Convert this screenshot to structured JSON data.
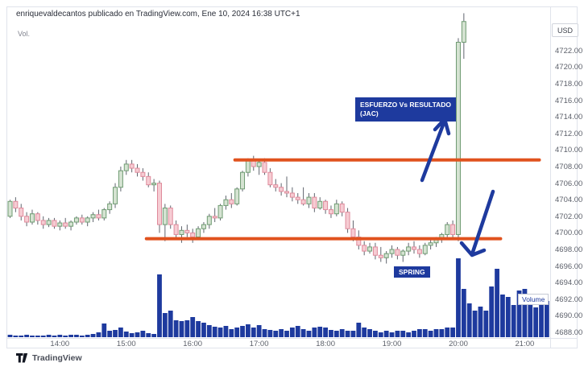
{
  "header": {
    "attribution": "enriquevaldecantos publicado en TradingView.com, Ene 10, 2024 16:38 UTC+1"
  },
  "pane": {
    "vol_label": "Vol.",
    "currency": "USD",
    "volume_badge": "Volume"
  },
  "annotations": {
    "effort_line1": "ESFUERZO Vs RESULTADO",
    "effort_line2": "(JAC)",
    "spring": "SPRING",
    "arrows": [
      {
        "name": "effort-arrow",
        "direction": "up"
      },
      {
        "name": "result-arrow",
        "direction": "down"
      }
    ]
  },
  "footer": {
    "brand": "TradingView",
    "logo_icon": "tradingview-logo"
  },
  "colors": {
    "up_fill": "#d5e3d2",
    "up_border": "#6f9b72",
    "down_fill": "#f6ccd3",
    "down_border": "#df8a9b",
    "wick": "#60656e",
    "volume": "#1e3a9e",
    "annotation_bg": "#1e3a9e",
    "accent_blue": "#1e3a9e",
    "line_orange": "#e0521e",
    "axis_text": "#5d616b",
    "border": "#e0e3eb"
  },
  "axes": {
    "price_ticks": [
      "4722.00",
      "4720.00",
      "4718.00",
      "4716.00",
      "4714.00",
      "4712.00",
      "4710.00",
      "4708.00",
      "4706.00",
      "4704.00",
      "4702.00",
      "4700.00",
      "4698.00",
      "4696.00",
      "4694.00",
      "4692.00",
      "4690.00",
      "4688.00"
    ],
    "time_ticks": [
      "14:00",
      "15:00",
      "16:00",
      "17:00",
      "18:00",
      "19:00",
      "20:00",
      "21:00"
    ]
  },
  "chart_data": {
    "type": "candlestick",
    "interval": "5m",
    "currency": "USD",
    "price_axis": {
      "min": 4688,
      "max": 4722,
      "tick_step": 2
    },
    "time_axis": {
      "start": "13:15",
      "end_volume": "21:20",
      "ticks": [
        "14:00",
        "15:00",
        "16:00",
        "17:00",
        "18:00",
        "19:00",
        "20:00",
        "21:00"
      ]
    },
    "levels": [
      {
        "label": "resistance",
        "price": 4708.8,
        "from": "16:40",
        "to": "21:15"
      },
      {
        "label": "support",
        "price": 4699.3,
        "from": "15:20",
        "to": "20:40"
      }
    ],
    "candles_format": [
      "time",
      "open",
      "high",
      "low",
      "close"
    ],
    "candles": [
      [
        "13:15",
        4702.0,
        4704.0,
        4701.8,
        4703.8
      ],
      [
        "13:20",
        4703.8,
        4704.3,
        4702.5,
        4703.0
      ],
      [
        "13:25",
        4703.0,
        4703.5,
        4701.5,
        4702.0
      ],
      [
        "13:30",
        4702.0,
        4702.5,
        4700.8,
        4701.3
      ],
      [
        "13:35",
        4701.3,
        4702.8,
        4701.0,
        4702.3
      ],
      [
        "13:40",
        4702.3,
        4702.5,
        4701.0,
        4701.5
      ],
      [
        "13:45",
        4701.5,
        4702.0,
        4700.5,
        4701.0
      ],
      [
        "13:50",
        4701.0,
        4701.8,
        4700.7,
        4701.5
      ],
      [
        "13:55",
        4701.5,
        4701.8,
        4700.5,
        4700.8
      ],
      [
        "14:00",
        4700.8,
        4701.5,
        4700.3,
        4701.2
      ],
      [
        "14:05",
        4701.2,
        4701.8,
        4700.5,
        4700.8
      ],
      [
        "14:10",
        4700.8,
        4701.5,
        4700.3,
        4701.3
      ],
      [
        "14:15",
        4701.3,
        4702.0,
        4701.0,
        4701.8
      ],
      [
        "14:20",
        4701.8,
        4702.2,
        4701.0,
        4701.3
      ],
      [
        "14:25",
        4701.3,
        4702.0,
        4700.8,
        4701.8
      ],
      [
        "14:30",
        4701.8,
        4702.5,
        4701.3,
        4702.2
      ],
      [
        "14:35",
        4702.2,
        4702.8,
        4701.5,
        4701.8
      ],
      [
        "14:40",
        4701.8,
        4703.0,
        4701.5,
        4702.8
      ],
      [
        "14:45",
        4702.8,
        4703.8,
        4702.3,
        4703.5
      ],
      [
        "14:50",
        4703.5,
        4706.0,
        4703.0,
        4705.5
      ],
      [
        "14:55",
        4705.5,
        4708.0,
        4705.0,
        4707.5
      ],
      [
        "15:00",
        4707.5,
        4708.8,
        4707.0,
        4708.3
      ],
      [
        "15:05",
        4708.3,
        4708.8,
        4707.3,
        4707.8
      ],
      [
        "15:10",
        4707.8,
        4708.3,
        4706.8,
        4707.3
      ],
      [
        "15:15",
        4707.3,
        4707.8,
        4706.3,
        4706.8
      ],
      [
        "15:20",
        4706.8,
        4707.3,
        4705.5,
        4705.8
      ],
      [
        "15:25",
        4705.8,
        4706.5,
        4705.0,
        4706.0
      ],
      [
        "15:30",
        4706.0,
        4706.3,
        4700.0,
        4701.0
      ],
      [
        "15:35",
        4701.0,
        4703.5,
        4699.0,
        4703.0
      ],
      [
        "15:40",
        4703.0,
        4703.3,
        4700.5,
        4701.0
      ],
      [
        "15:45",
        4701.0,
        4701.5,
        4699.3,
        4699.8
      ],
      [
        "15:50",
        4699.8,
        4700.8,
        4698.8,
        4700.3
      ],
      [
        "15:55",
        4700.3,
        4701.0,
        4699.5,
        4700.0
      ],
      [
        "16:00",
        4700.0,
        4700.5,
        4698.8,
        4699.5
      ],
      [
        "16:05",
        4699.5,
        4700.8,
        4699.3,
        4700.5
      ],
      [
        "16:10",
        4700.5,
        4701.3,
        4700.0,
        4701.0
      ],
      [
        "16:15",
        4701.0,
        4702.3,
        4700.5,
        4702.0
      ],
      [
        "16:20",
        4702.0,
        4703.0,
        4701.3,
        4701.8
      ],
      [
        "16:25",
        4701.8,
        4703.5,
        4701.5,
        4703.3
      ],
      [
        "16:30",
        4703.3,
        4704.5,
        4702.8,
        4704.0
      ],
      [
        "16:35",
        4704.0,
        4704.8,
        4703.0,
        4703.5
      ],
      [
        "16:40",
        4703.5,
        4705.5,
        4703.3,
        4705.3
      ],
      [
        "16:45",
        4705.3,
        4707.5,
        4705.0,
        4707.3
      ],
      [
        "16:50",
        4707.3,
        4709.0,
        4706.8,
        4708.8
      ],
      [
        "16:55",
        4708.8,
        4709.3,
        4707.5,
        4708.0
      ],
      [
        "17:00",
        4708.0,
        4708.8,
        4707.0,
        4708.5
      ],
      [
        "17:05",
        4708.5,
        4709.0,
        4707.0,
        4707.3
      ],
      [
        "17:10",
        4707.3,
        4707.8,
        4705.5,
        4705.8
      ],
      [
        "17:15",
        4705.8,
        4706.5,
        4705.0,
        4705.5
      ],
      [
        "17:20",
        4705.5,
        4706.0,
        4704.5,
        4705.0
      ],
      [
        "17:25",
        4705.0,
        4706.8,
        4704.3,
        4704.8
      ],
      [
        "17:30",
        4704.8,
        4705.5,
        4703.8,
        4704.3
      ],
      [
        "17:35",
        4704.3,
        4704.8,
        4703.5,
        4704.0
      ],
      [
        "17:40",
        4704.0,
        4705.5,
        4703.3,
        4703.5
      ],
      [
        "17:45",
        4703.5,
        4704.8,
        4703.0,
        4704.3
      ],
      [
        "17:50",
        4704.3,
        4704.8,
        4702.5,
        4703.0
      ],
      [
        "17:55",
        4703.0,
        4704.3,
        4702.8,
        4703.8
      ],
      [
        "18:00",
        4703.8,
        4704.0,
        4702.3,
        4702.8
      ],
      [
        "18:05",
        4702.8,
        4703.3,
        4701.8,
        4702.3
      ],
      [
        "18:10",
        4702.3,
        4704.0,
        4702.0,
        4703.5
      ],
      [
        "18:15",
        4703.5,
        4703.8,
        4702.0,
        4702.5
      ],
      [
        "18:20",
        4702.5,
        4703.0,
        4700.0,
        4700.5
      ],
      [
        "18:25",
        4700.5,
        4701.5,
        4699.0,
        4699.5
      ],
      [
        "18:30",
        4699.5,
        4700.3,
        4698.0,
        4698.5
      ],
      [
        "18:35",
        4698.5,
        4699.0,
        4697.3,
        4697.8
      ],
      [
        "18:40",
        4697.8,
        4698.8,
        4697.5,
        4698.3
      ],
      [
        "18:45",
        4698.3,
        4698.8,
        4696.8,
        4697.3
      ],
      [
        "18:50",
        4697.3,
        4698.3,
        4696.5,
        4697.0
      ],
      [
        "18:55",
        4697.0,
        4697.8,
        4696.3,
        4697.5
      ],
      [
        "19:00",
        4697.5,
        4698.5,
        4697.0,
        4698.0
      ],
      [
        "19:05",
        4698.0,
        4698.3,
        4696.8,
        4697.3
      ],
      [
        "19:10",
        4697.3,
        4698.0,
        4696.5,
        4697.8
      ],
      [
        "19:15",
        4697.8,
        4698.8,
        4697.3,
        4698.3
      ],
      [
        "19:20",
        4698.3,
        4699.0,
        4697.5,
        4698.0
      ],
      [
        "19:25",
        4698.0,
        4698.5,
        4697.0,
        4697.5
      ],
      [
        "19:30",
        4697.5,
        4698.8,
        4697.3,
        4698.5
      ],
      [
        "19:35",
        4698.5,
        4699.3,
        4698.0,
        4698.8
      ],
      [
        "19:40",
        4698.8,
        4699.5,
        4698.3,
        4699.3
      ],
      [
        "19:45",
        4699.3,
        4700.0,
        4698.8,
        4699.8
      ],
      [
        "19:50",
        4699.8,
        4701.3,
        4699.5,
        4701.0
      ],
      [
        "19:55",
        4701.0,
        4701.5,
        4699.3,
        4699.8
      ],
      [
        "20:00",
        4699.8,
        4723.5,
        4699.0,
        4723.0
      ],
      [
        "20:05",
        4723.0,
        4726.5,
        4721.0,
        4725.5
      ]
    ],
    "volume_unit": "relative height (no volume scale shown)",
    "volume": [
      [
        "13:15",
        3
      ],
      [
        "13:20",
        2
      ],
      [
        "13:25",
        2
      ],
      [
        "13:30",
        3
      ],
      [
        "13:35",
        2
      ],
      [
        "13:40",
        2
      ],
      [
        "13:45",
        2
      ],
      [
        "13:50",
        3
      ],
      [
        "13:55",
        2
      ],
      [
        "14:00",
        3
      ],
      [
        "14:05",
        2
      ],
      [
        "14:10",
        3
      ],
      [
        "14:15",
        3
      ],
      [
        "14:20",
        2
      ],
      [
        "14:25",
        3
      ],
      [
        "14:30",
        4
      ],
      [
        "14:35",
        6
      ],
      [
        "14:40",
        17
      ],
      [
        "14:45",
        8
      ],
      [
        "14:50",
        9
      ],
      [
        "14:55",
        12
      ],
      [
        "15:00",
        7
      ],
      [
        "15:05",
        5
      ],
      [
        "15:10",
        6
      ],
      [
        "15:15",
        8
      ],
      [
        "15:20",
        5
      ],
      [
        "15:25",
        4
      ],
      [
        "15:30",
        78
      ],
      [
        "15:35",
        30
      ],
      [
        "15:40",
        33
      ],
      [
        "15:45",
        21
      ],
      [
        "15:50",
        20
      ],
      [
        "15:55",
        21
      ],
      [
        "16:00",
        25
      ],
      [
        "16:05",
        20
      ],
      [
        "16:10",
        18
      ],
      [
        "16:15",
        15
      ],
      [
        "16:20",
        13
      ],
      [
        "16:25",
        12
      ],
      [
        "16:30",
        14
      ],
      [
        "16:35",
        10
      ],
      [
        "16:40",
        12
      ],
      [
        "16:45",
        14
      ],
      [
        "16:50",
        16
      ],
      [
        "16:55",
        12
      ],
      [
        "17:00",
        15
      ],
      [
        "17:05",
        10
      ],
      [
        "17:10",
        9
      ],
      [
        "17:15",
        8
      ],
      [
        "17:20",
        10
      ],
      [
        "17:25",
        8
      ],
      [
        "17:30",
        12
      ],
      [
        "17:35",
        14
      ],
      [
        "17:40",
        10
      ],
      [
        "17:45",
        8
      ],
      [
        "17:50",
        12
      ],
      [
        "17:55",
        13
      ],
      [
        "18:00",
        12
      ],
      [
        "18:05",
        9
      ],
      [
        "18:10",
        8
      ],
      [
        "18:15",
        10
      ],
      [
        "18:20",
        8
      ],
      [
        "18:25",
        8
      ],
      [
        "18:30",
        18
      ],
      [
        "18:35",
        12
      ],
      [
        "18:40",
        10
      ],
      [
        "18:45",
        8
      ],
      [
        "18:50",
        6
      ],
      [
        "18:55",
        8
      ],
      [
        "19:00",
        6
      ],
      [
        "19:05",
        8
      ],
      [
        "19:10",
        8
      ],
      [
        "19:15",
        6
      ],
      [
        "19:20",
        8
      ],
      [
        "19:25",
        10
      ],
      [
        "19:30",
        10
      ],
      [
        "19:35",
        8
      ],
      [
        "19:40",
        10
      ],
      [
        "19:45",
        10
      ],
      [
        "19:50",
        12
      ],
      [
        "19:55",
        12
      ],
      [
        "20:00",
        98
      ],
      [
        "20:05",
        60
      ],
      [
        "20:10",
        42
      ],
      [
        "20:15",
        33
      ],
      [
        "20:20",
        38
      ],
      [
        "20:25",
        33
      ],
      [
        "20:30",
        63
      ],
      [
        "20:35",
        85
      ],
      [
        "20:40",
        53
      ],
      [
        "20:45",
        50
      ],
      [
        "20:50",
        40
      ],
      [
        "20:55",
        58
      ],
      [
        "21:00",
        60
      ],
      [
        "21:05",
        50
      ],
      [
        "21:10",
        37
      ],
      [
        "21:15",
        42
      ],
      [
        "21:20",
        45
      ]
    ]
  }
}
